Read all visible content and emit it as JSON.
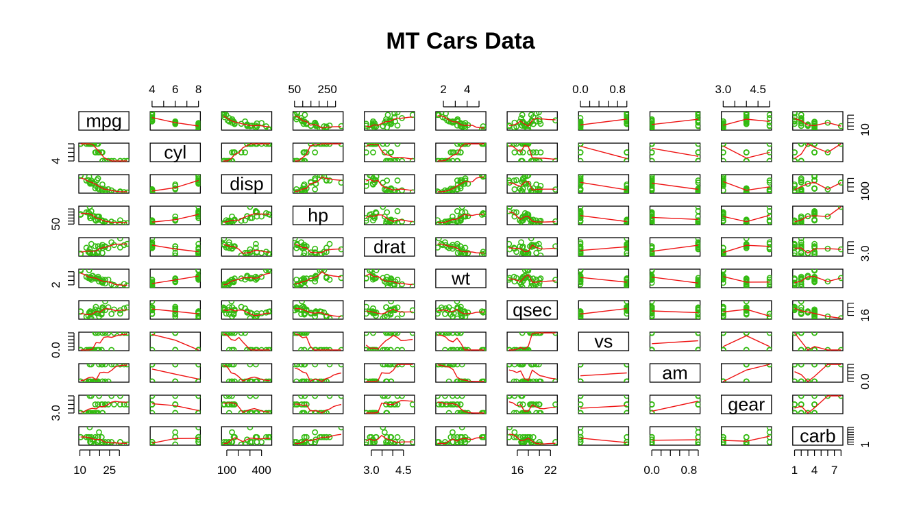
{
  "chart_data": {
    "type": "scatter",
    "title": "MT Cars Data",
    "variables": [
      "mpg",
      "cyl",
      "disp",
      "hp",
      "drat",
      "wt",
      "qsec",
      "vs",
      "am",
      "gear",
      "carb"
    ],
    "ranges": {
      "mpg": [
        10.4,
        33.9
      ],
      "cyl": [
        4,
        8
      ],
      "disp": [
        71.1,
        472
      ],
      "hp": [
        52,
        335
      ],
      "drat": [
        2.76,
        4.93
      ],
      "wt": [
        1.513,
        5.424
      ],
      "qsec": [
        14.5,
        22.9
      ],
      "vs": [
        0,
        1
      ],
      "am": [
        0,
        1
      ],
      "gear": [
        3,
        5
      ],
      "carb": [
        1,
        8
      ]
    },
    "axis_ticks": {
      "top": [
        {
          "var": "cyl",
          "labels": [
            "4",
            "6",
            "8"
          ],
          "values": [
            4,
            6,
            8
          ],
          "minor": [
            4,
            5,
            6,
            7,
            8
          ]
        },
        {
          "var": "hp",
          "labels": [
            "50",
            "250"
          ],
          "values": [
            50,
            250
          ],
          "minor": [
            50,
            100,
            150,
            200,
            250,
            300
          ]
        },
        {
          "var": "wt",
          "labels": [
            "2",
            "4"
          ],
          "values": [
            2,
            4
          ],
          "minor": [
            2,
            3,
            4,
            5
          ]
        },
        {
          "var": "vs",
          "labels": [
            "0.0",
            "0.8"
          ],
          "values": [
            0.0,
            0.8
          ],
          "minor": [
            0.0,
            0.2,
            0.4,
            0.6,
            0.8,
            1.0
          ]
        },
        {
          "var": "gear",
          "labels": [
            "3.0",
            "4.5"
          ],
          "values": [
            3.0,
            4.5
          ],
          "minor": [
            3.0,
            3.5,
            4.0,
            4.5,
            5.0
          ]
        }
      ],
      "bottom": [
        {
          "var": "mpg",
          "labels": [
            "10",
            "25"
          ],
          "values": [
            10,
            25
          ],
          "minor": [
            10,
            15,
            20,
            25,
            30
          ]
        },
        {
          "var": "disp",
          "labels": [
            "100",
            "400"
          ],
          "values": [
            100,
            400
          ],
          "minor": [
            100,
            200,
            300,
            400
          ]
        },
        {
          "var": "drat",
          "labels": [
            "3.0",
            "4.5"
          ],
          "values": [
            3.0,
            4.5
          ],
          "minor": [
            3.0,
            3.5,
            4.0,
            4.5
          ]
        },
        {
          "var": "qsec",
          "labels": [
            "16",
            "22"
          ],
          "values": [
            16,
            22
          ],
          "minor": [
            16,
            18,
            20,
            22
          ]
        },
        {
          "var": "am",
          "labels": [
            "0.0",
            "0.8"
          ],
          "values": [
            0.0,
            0.8
          ],
          "minor": [
            0.0,
            0.2,
            0.4,
            0.6,
            0.8,
            1.0
          ]
        },
        {
          "var": "carb",
          "labels": [
            "1",
            "4",
            "7"
          ],
          "values": [
            1,
            4,
            7
          ],
          "minor": [
            1,
            2,
            3,
            4,
            5,
            6,
            7,
            8
          ]
        }
      ],
      "left": [
        {
          "var": "cyl",
          "labels": [
            "4"
          ],
          "values": [
            4
          ],
          "minor": [
            4,
            5,
            6,
            7,
            8
          ]
        },
        {
          "var": "hp",
          "labels": [
            "50"
          ],
          "values": [
            50
          ],
          "minor": [
            50,
            100,
            150,
            200,
            250,
            300
          ]
        },
        {
          "var": "wt",
          "labels": [
            "2"
          ],
          "values": [
            2
          ],
          "minor": [
            2,
            3,
            4,
            5
          ]
        },
        {
          "var": "vs",
          "labels": [
            "0.0"
          ],
          "values": [
            0.0
          ],
          "minor": [
            0.0,
            0.2,
            0.4,
            0.6,
            0.8,
            1.0
          ]
        },
        {
          "var": "gear",
          "labels": [
            "3.0"
          ],
          "values": [
            3.0
          ],
          "minor": [
            3.0,
            3.5,
            4.0,
            4.5,
            5.0
          ]
        }
      ],
      "right": [
        {
          "var": "mpg",
          "labels": [
            "10"
          ],
          "values": [
            10
          ],
          "minor": [
            10,
            15,
            20,
            25,
            30
          ]
        },
        {
          "var": "disp",
          "labels": [
            "100"
          ],
          "values": [
            100
          ],
          "minor": [
            100,
            200,
            300,
            400
          ]
        },
        {
          "var": "drat",
          "labels": [
            "3.0"
          ],
          "values": [
            3.0
          ],
          "minor": [
            3.0,
            3.5,
            4.0,
            4.5
          ]
        },
        {
          "var": "qsec",
          "labels": [
            "16"
          ],
          "values": [
            16
          ],
          "minor": [
            16,
            18,
            20,
            22
          ]
        },
        {
          "var": "am",
          "labels": [
            "0.0"
          ],
          "values": [
            0.0
          ],
          "minor": [
            0.0,
            0.2,
            0.4,
            0.6,
            0.8,
            1.0
          ]
        },
        {
          "var": "carb",
          "labels": [
            "1"
          ],
          "values": [
            1
          ],
          "minor": [
            1,
            2,
            3,
            4,
            5,
            6,
            7,
            8
          ]
        }
      ]
    },
    "point_color": "#33bb11",
    "smooth_color": "#ee1111",
    "observations": [
      [
        21.0,
        6,
        160.0,
        110,
        3.9,
        2.62,
        16.46,
        0,
        1,
        4,
        4
      ],
      [
        21.0,
        6,
        160.0,
        110,
        3.9,
        2.875,
        17.02,
        0,
        1,
        4,
        4
      ],
      [
        22.8,
        4,
        108.0,
        93,
        3.85,
        2.32,
        18.61,
        1,
        1,
        4,
        1
      ],
      [
        21.4,
        6,
        258.0,
        110,
        3.08,
        3.215,
        19.44,
        1,
        0,
        3,
        1
      ],
      [
        18.7,
        8,
        360.0,
        175,
        3.15,
        3.44,
        17.02,
        0,
        0,
        3,
        2
      ],
      [
        18.1,
        6,
        225.0,
        105,
        2.76,
        3.46,
        20.22,
        1,
        0,
        3,
        1
      ],
      [
        14.3,
        8,
        360.0,
        245,
        3.21,
        3.57,
        15.84,
        0,
        0,
        3,
        4
      ],
      [
        24.4,
        4,
        146.7,
        62,
        3.69,
        3.19,
        20.0,
        1,
        0,
        4,
        2
      ],
      [
        22.8,
        4,
        140.8,
        95,
        3.92,
        3.15,
        22.9,
        1,
        0,
        4,
        2
      ],
      [
        19.2,
        6,
        167.6,
        123,
        3.92,
        3.44,
        18.3,
        1,
        0,
        4,
        4
      ],
      [
        17.8,
        6,
        167.6,
        123,
        3.92,
        3.44,
        18.9,
        1,
        0,
        4,
        4
      ],
      [
        16.4,
        8,
        275.8,
        180,
        3.07,
        4.07,
        17.4,
        0,
        0,
        3,
        3
      ],
      [
        17.3,
        8,
        275.8,
        180,
        3.07,
        3.73,
        17.6,
        0,
        0,
        3,
        3
      ],
      [
        15.2,
        8,
        275.8,
        180,
        3.07,
        3.78,
        18.0,
        0,
        0,
        3,
        3
      ],
      [
        10.4,
        8,
        472.0,
        205,
        2.93,
        5.25,
        17.98,
        0,
        0,
        3,
        4
      ],
      [
        10.4,
        8,
        460.0,
        215,
        3.0,
        5.424,
        17.82,
        0,
        0,
        3,
        4
      ],
      [
        14.7,
        8,
        440.0,
        230,
        3.23,
        5.345,
        17.42,
        0,
        0,
        3,
        4
      ],
      [
        32.4,
        4,
        78.7,
        66,
        4.08,
        2.2,
        19.47,
        1,
        1,
        4,
        1
      ],
      [
        30.4,
        4,
        75.7,
        52,
        4.93,
        1.615,
        18.52,
        1,
        1,
        4,
        2
      ],
      [
        33.9,
        4,
        71.1,
        65,
        4.22,
        1.835,
        19.9,
        1,
        1,
        4,
        1
      ],
      [
        21.5,
        4,
        120.1,
        97,
        3.7,
        2.465,
        20.01,
        1,
        0,
        3,
        1
      ],
      [
        15.5,
        8,
        318.0,
        150,
        2.76,
        3.52,
        16.87,
        0,
        0,
        3,
        2
      ],
      [
        15.2,
        8,
        304.0,
        150,
        3.15,
        3.435,
        17.3,
        0,
        0,
        3,
        2
      ],
      [
        13.3,
        8,
        350.0,
        245,
        3.73,
        3.84,
        15.41,
        0,
        0,
        3,
        4
      ],
      [
        19.2,
        8,
        400.0,
        175,
        3.08,
        3.845,
        17.05,
        0,
        0,
        3,
        2
      ],
      [
        27.3,
        4,
        79.0,
        66,
        4.08,
        1.935,
        18.9,
        1,
        1,
        4,
        1
      ],
      [
        26.0,
        4,
        120.3,
        91,
        4.43,
        2.14,
        16.7,
        0,
        1,
        5,
        2
      ],
      [
        30.4,
        4,
        95.1,
        113,
        3.77,
        1.513,
        16.9,
        1,
        1,
        5,
        2
      ],
      [
        15.8,
        8,
        351.0,
        264,
        4.22,
        3.17,
        14.5,
        0,
        1,
        5,
        4
      ],
      [
        19.7,
        6,
        145.0,
        175,
        3.62,
        2.77,
        15.5,
        0,
        1,
        5,
        6
      ],
      [
        15.0,
        8,
        301.0,
        335,
        3.54,
        3.57,
        14.6,
        0,
        1,
        5,
        8
      ],
      [
        21.4,
        4,
        121.0,
        109,
        4.11,
        2.78,
        18.6,
        1,
        1,
        4,
        2
      ]
    ]
  }
}
